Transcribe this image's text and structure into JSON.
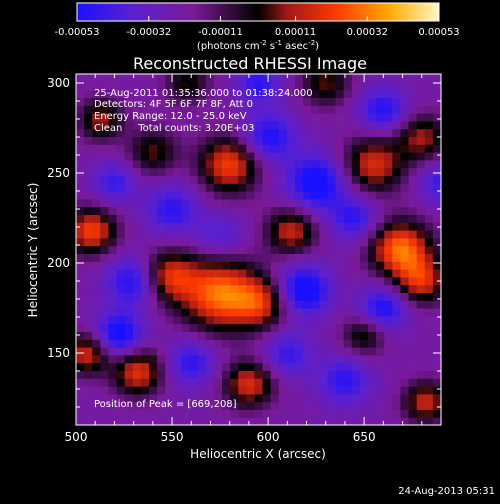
{
  "colorbar": {
    "tick_labels": [
      "-0.00053",
      "-0.00032",
      "-0.00011",
      "0.00011",
      "0.00032",
      "0.00053"
    ],
    "tick_values": [
      -0.00053,
      -0.00032,
      -0.00011,
      0.00011,
      0.00032,
      0.00053
    ],
    "range": [
      -0.00053,
      0.00053
    ],
    "units_prefix": "(photons cm",
    "units_exp1": "-2",
    "units_mid": " s",
    "units_exp2": "-1",
    "units_mid2": " asec",
    "units_exp3": "-2",
    "units_suffix": ")",
    "colors": [
      "#1a10ff",
      "#5a20d0",
      "#7a1a9a",
      "#2a0a30",
      "#000000",
      "#a01818",
      "#ff3a00",
      "#ffa800",
      "#fff8c0"
    ]
  },
  "chart_data": {
    "type": "heatmap",
    "title": "Reconstructed RHESSI Image",
    "xlabel": "Heliocentric X (arcsec)",
    "ylabel": "Heliocentric Y (arcsec)",
    "xlim": [
      500,
      690
    ],
    "ylim": [
      110,
      305
    ],
    "x_ticks": [
      500,
      550,
      600,
      650
    ],
    "y_ticks": [
      150,
      200,
      250,
      300
    ],
    "x_tick_labels": [
      "500",
      "550",
      "600",
      "650"
    ],
    "y_tick_labels": [
      "150",
      "200",
      "250",
      "300"
    ],
    "grid": false,
    "peak": [
      669,
      208
    ],
    "sources": [
      {
        "x": 575,
        "y": 183,
        "v": 1.0,
        "s": 14
      },
      {
        "x": 548,
        "y": 193,
        "v": 0.75,
        "s": 10
      },
      {
        "x": 597,
        "y": 178,
        "v": 0.65,
        "s": 10
      },
      {
        "x": 669,
        "y": 208,
        "v": 1.0,
        "s": 11
      },
      {
        "x": 680,
        "y": 190,
        "v": 0.7,
        "s": 9
      },
      {
        "x": 580,
        "y": 255,
        "v": 0.85,
        "s": 11
      },
      {
        "x": 655,
        "y": 255,
        "v": 0.75,
        "s": 11
      },
      {
        "x": 680,
        "y": 270,
        "v": 0.6,
        "s": 9
      },
      {
        "x": 508,
        "y": 218,
        "v": 0.85,
        "s": 9
      },
      {
        "x": 506,
        "y": 150,
        "v": 0.75,
        "s": 8
      },
      {
        "x": 532,
        "y": 140,
        "v": 0.8,
        "s": 9
      },
      {
        "x": 590,
        "y": 133,
        "v": 0.75,
        "s": 9
      },
      {
        "x": 612,
        "y": 218,
        "v": 0.7,
        "s": 9
      },
      {
        "x": 540,
        "y": 262,
        "v": 0.5,
        "s": 9
      },
      {
        "x": 513,
        "y": 280,
        "v": 0.6,
        "s": 8
      },
      {
        "x": 682,
        "y": 123,
        "v": 0.7,
        "s": 8
      },
      {
        "x": 650,
        "y": 160,
        "v": 0.5,
        "s": 8
      },
      {
        "x": 630,
        "y": 300,
        "v": 0.5,
        "s": 9
      },
      {
        "x": 558,
        "y": 300,
        "v": 0.45,
        "s": 8
      },
      {
        "x": 530,
        "y": 190,
        "v": -0.6,
        "s": 10
      },
      {
        "x": 618,
        "y": 185,
        "v": -0.75,
        "s": 10
      },
      {
        "x": 625,
        "y": 245,
        "v": -0.7,
        "s": 11
      },
      {
        "x": 600,
        "y": 270,
        "v": -0.6,
        "s": 10
      },
      {
        "x": 522,
        "y": 160,
        "v": -0.7,
        "s": 9
      },
      {
        "x": 550,
        "y": 230,
        "v": -0.5,
        "s": 10
      },
      {
        "x": 660,
        "y": 175,
        "v": -0.6,
        "s": 9
      },
      {
        "x": 640,
        "y": 135,
        "v": -0.5,
        "s": 10
      },
      {
        "x": 560,
        "y": 145,
        "v": -0.5,
        "s": 9
      },
      {
        "x": 660,
        "y": 285,
        "v": -0.55,
        "s": 9
      },
      {
        "x": 520,
        "y": 245,
        "v": -0.45,
        "s": 8
      },
      {
        "x": 645,
        "y": 225,
        "v": -0.5,
        "s": 9
      },
      {
        "x": 595,
        "y": 300,
        "v": -0.5,
        "s": 8
      },
      {
        "x": 690,
        "y": 245,
        "v": -0.45,
        "s": 8
      },
      {
        "x": 575,
        "y": 215,
        "v": -0.35,
        "s": 9
      },
      {
        "x": 610,
        "y": 150,
        "v": -0.45,
        "s": 9
      }
    ]
  },
  "info": {
    "line1": "25-Aug-2011 01:35:36.000 to 01:38:24.000",
    "line2": "Detectors: 4F 5F 6F 7F 8F, Att 0",
    "line3": "Energy Range: 12.0 - 25.0 keV",
    "line4": "Clean     Total counts: 3.20E+03",
    "peak_label": "Position of Peak = [669,208]"
  },
  "footer": {
    "timestamp": "24-Aug-2013 05:31"
  }
}
